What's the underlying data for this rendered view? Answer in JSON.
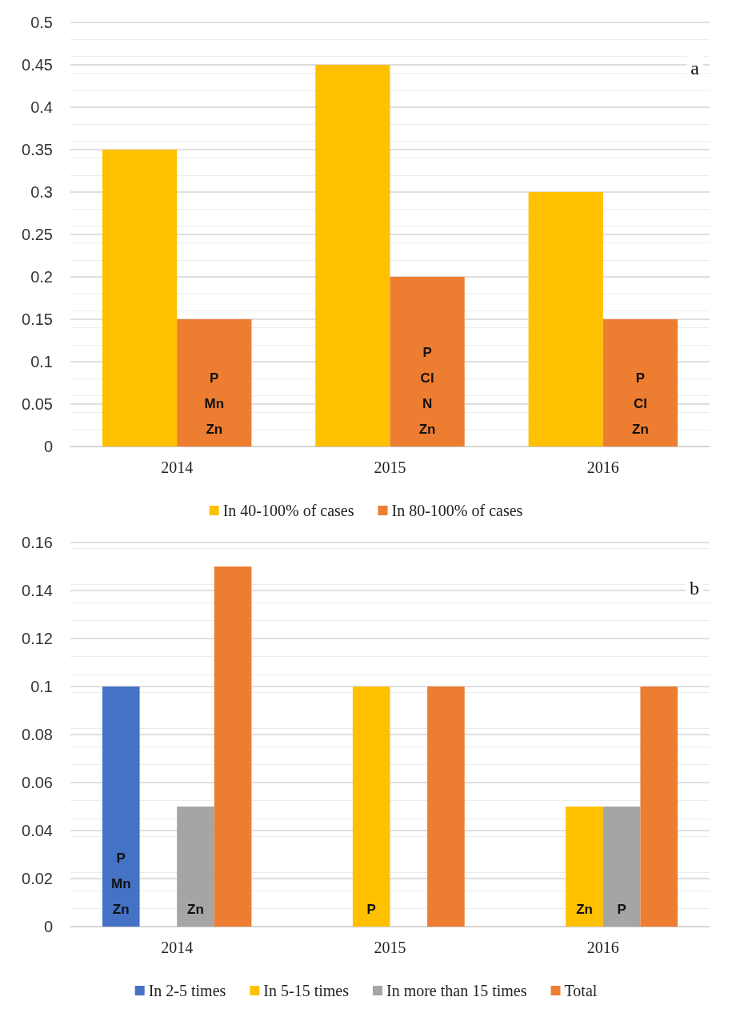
{
  "chart_data": [
    {
      "type": "bar",
      "title": "a",
      "categories": [
        "2014",
        "2015",
        "2016"
      ],
      "series": [
        {
          "name": "In 40-100% of cases",
          "color": "#ffc000",
          "values": [
            0.35,
            0.45,
            0.3
          ]
        },
        {
          "name": "In 80-100% of cases",
          "color": "#ed7d31",
          "values": [
            0.15,
            0.2,
            0.15
          ],
          "value_labels": [
            "P\nMn\nZn",
            "P\nCl\nN\nZn",
            "P\nCl\nZn"
          ]
        }
      ],
      "ylim": [
        0,
        0.5
      ],
      "yticks": [
        0,
        0.05,
        0.1,
        0.15,
        0.2,
        0.25,
        0.3,
        0.35,
        0.4,
        0.45,
        0.5
      ],
      "grid": "y",
      "legend": "bottom"
    },
    {
      "type": "bar",
      "title": "b",
      "categories": [
        "2014",
        "2015",
        "2016"
      ],
      "series": [
        {
          "name": "In 2-5 times",
          "color": "#4472c4",
          "values": [
            0.1,
            null,
            null
          ],
          "value_labels": [
            "P\nMn\nZn",
            null,
            null
          ]
        },
        {
          "name": "In 5-15 times",
          "color": "#ffc000",
          "values": [
            null,
            0.1,
            0.05
          ],
          "value_labels": [
            null,
            "P",
            "Zn"
          ]
        },
        {
          "name": "In more than 15 times",
          "color": "#a5a5a5",
          "values": [
            0.05,
            null,
            0.05
          ],
          "value_labels": [
            "Zn",
            null,
            "P"
          ]
        },
        {
          "name": "Total",
          "color": "#ed7d31",
          "values": [
            0.15,
            0.1,
            0.1
          ]
        }
      ],
      "ylim": [
        0,
        0.16
      ],
      "yticks": [
        0,
        0.02,
        0.04,
        0.06,
        0.08,
        0.1,
        0.12,
        0.14,
        0.16
      ],
      "grid": "y",
      "legend": "bottom"
    }
  ]
}
